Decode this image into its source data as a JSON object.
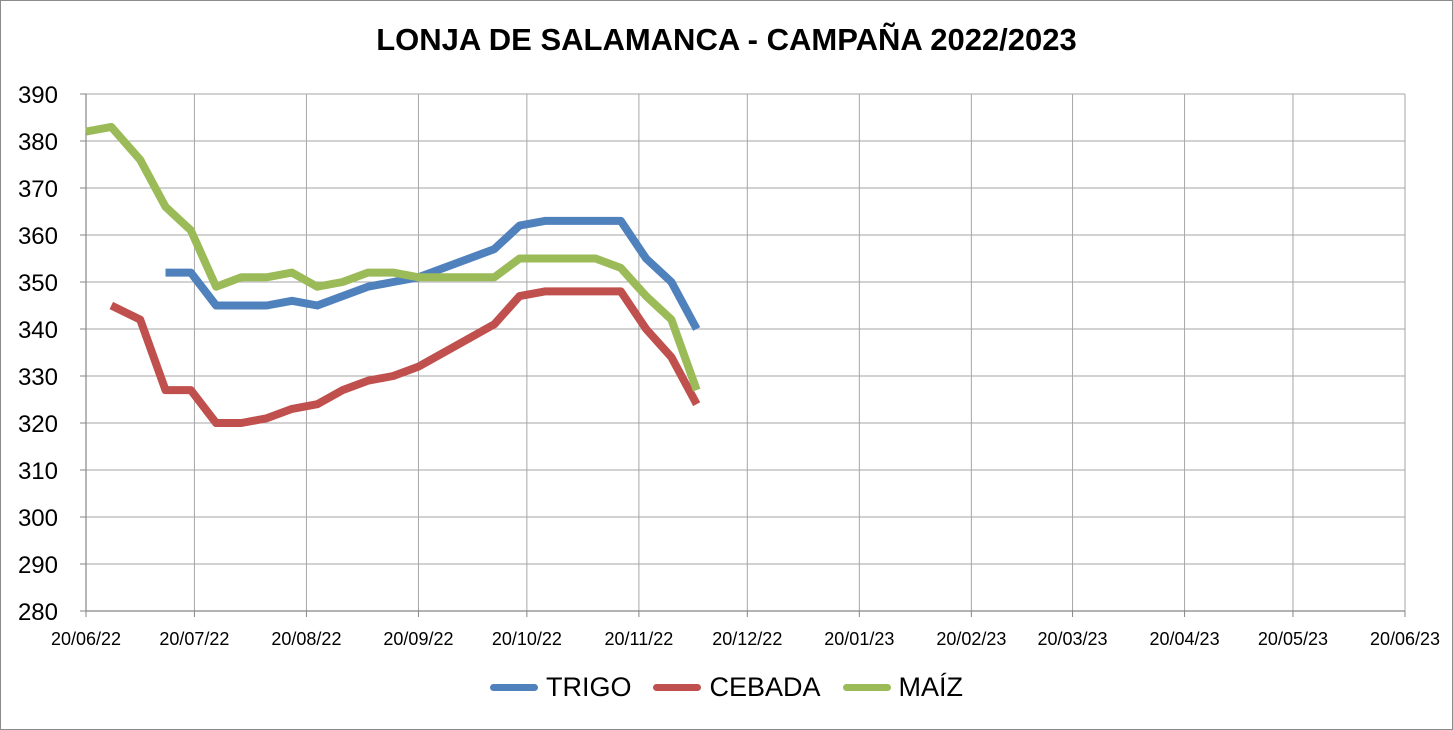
{
  "chart_data": {
    "type": "line",
    "title": "LONJA DE SALAMANCA - CAMPAÑA 2022/2023",
    "xlabel": "",
    "ylabel": "",
    "ylim": [
      280,
      390
    ],
    "yticks": [
      "390",
      "380",
      "370",
      "360",
      "350",
      "340",
      "330",
      "320",
      "310",
      "300",
      "290",
      "280"
    ],
    "xlim": [
      "2022-06-20",
      "2023-06-20"
    ],
    "xticks": [
      {
        "date": "2022-06-20",
        "label": "20/06/22"
      },
      {
        "date": "2022-07-20",
        "label": "20/07/22"
      },
      {
        "date": "2022-08-20",
        "label": "20/08/22"
      },
      {
        "date": "2022-09-20",
        "label": "20/09/22"
      },
      {
        "date": "2022-10-20",
        "label": "20/10/22"
      },
      {
        "date": "2022-11-20",
        "label": "20/11/22"
      },
      {
        "date": "2022-12-20",
        "label": "20/12/22"
      },
      {
        "date": "2023-01-20",
        "label": "20/01/23"
      },
      {
        "date": "2023-02-20",
        "label": "20/02/23"
      },
      {
        "date": "2023-03-20",
        "label": "20/03/23"
      },
      {
        "date": "2023-04-20",
        "label": "20/04/23"
      },
      {
        "date": "2023-05-20",
        "label": "20/05/23"
      },
      {
        "date": "2023-06-20",
        "label": "20/06/23"
      }
    ],
    "grid": true,
    "legend_position": "bottom",
    "series": [
      {
        "name": "TRIGO",
        "color": "#4f81bd",
        "points": [
          {
            "x": "2022-07-12",
            "y": 352
          },
          {
            "x": "2022-07-19",
            "y": 352
          },
          {
            "x": "2022-07-26",
            "y": 345
          },
          {
            "x": "2022-08-02",
            "y": 345
          },
          {
            "x": "2022-08-09",
            "y": 345
          },
          {
            "x": "2022-08-16",
            "y": 346
          },
          {
            "x": "2022-08-23",
            "y": 345
          },
          {
            "x": "2022-08-30",
            "y": 347
          },
          {
            "x": "2022-09-06",
            "y": 349
          },
          {
            "x": "2022-09-13",
            "y": 350
          },
          {
            "x": "2022-09-20",
            "y": 351
          },
          {
            "x": "2022-09-27",
            "y": 353
          },
          {
            "x": "2022-10-04",
            "y": 355
          },
          {
            "x": "2022-10-11",
            "y": 357
          },
          {
            "x": "2022-10-18",
            "y": 362
          },
          {
            "x": "2022-10-25",
            "y": 363
          },
          {
            "x": "2022-11-01",
            "y": 363
          },
          {
            "x": "2022-11-08",
            "y": 363
          },
          {
            "x": "2022-11-15",
            "y": 363
          },
          {
            "x": "2022-11-22",
            "y": 355
          },
          {
            "x": "2022-11-29",
            "y": 350
          },
          {
            "x": "2022-12-06",
            "y": 340
          }
        ]
      },
      {
        "name": "CEBADA",
        "color": "#c0504d",
        "points": [
          {
            "x": "2022-06-27",
            "y": 345
          },
          {
            "x": "2022-07-05",
            "y": 342
          },
          {
            "x": "2022-07-12",
            "y": 327
          },
          {
            "x": "2022-07-19",
            "y": 327
          },
          {
            "x": "2022-07-26",
            "y": 320
          },
          {
            "x": "2022-08-02",
            "y": 320
          },
          {
            "x": "2022-08-09",
            "y": 321
          },
          {
            "x": "2022-08-16",
            "y": 323
          },
          {
            "x": "2022-08-23",
            "y": 324
          },
          {
            "x": "2022-08-30",
            "y": 327
          },
          {
            "x": "2022-09-06",
            "y": 329
          },
          {
            "x": "2022-09-13",
            "y": 330
          },
          {
            "x": "2022-09-20",
            "y": 332
          },
          {
            "x": "2022-09-27",
            "y": 335
          },
          {
            "x": "2022-10-04",
            "y": 338
          },
          {
            "x": "2022-10-11",
            "y": 341
          },
          {
            "x": "2022-10-18",
            "y": 347
          },
          {
            "x": "2022-10-25",
            "y": 348
          },
          {
            "x": "2022-11-01",
            "y": 348
          },
          {
            "x": "2022-11-08",
            "y": 348
          },
          {
            "x": "2022-11-15",
            "y": 348
          },
          {
            "x": "2022-11-22",
            "y": 340
          },
          {
            "x": "2022-11-29",
            "y": 334
          },
          {
            "x": "2022-12-06",
            "y": 324
          }
        ]
      },
      {
        "name": "MAÍZ",
        "color": "#9bbb59",
        "points": [
          {
            "x": "2022-06-20",
            "y": 382
          },
          {
            "x": "2022-06-27",
            "y": 383
          },
          {
            "x": "2022-07-05",
            "y": 376
          },
          {
            "x": "2022-07-12",
            "y": 366
          },
          {
            "x": "2022-07-19",
            "y": 361
          },
          {
            "x": "2022-07-26",
            "y": 349
          },
          {
            "x": "2022-08-02",
            "y": 351
          },
          {
            "x": "2022-08-09",
            "y": 351
          },
          {
            "x": "2022-08-16",
            "y": 352
          },
          {
            "x": "2022-08-23",
            "y": 349
          },
          {
            "x": "2022-08-30",
            "y": 350
          },
          {
            "x": "2022-09-06",
            "y": 352
          },
          {
            "x": "2022-09-13",
            "y": 352
          },
          {
            "x": "2022-09-20",
            "y": 351
          },
          {
            "x": "2022-09-27",
            "y": 351
          },
          {
            "x": "2022-10-04",
            "y": 351
          },
          {
            "x": "2022-10-11",
            "y": 351
          },
          {
            "x": "2022-10-18",
            "y": 355
          },
          {
            "x": "2022-10-25",
            "y": 355
          },
          {
            "x": "2022-11-01",
            "y": 355
          },
          {
            "x": "2022-11-08",
            "y": 355
          },
          {
            "x": "2022-11-15",
            "y": 353
          },
          {
            "x": "2022-11-22",
            "y": 347
          },
          {
            "x": "2022-11-29",
            "y": 342
          },
          {
            "x": "2022-12-06",
            "y": 327
          }
        ]
      }
    ]
  }
}
